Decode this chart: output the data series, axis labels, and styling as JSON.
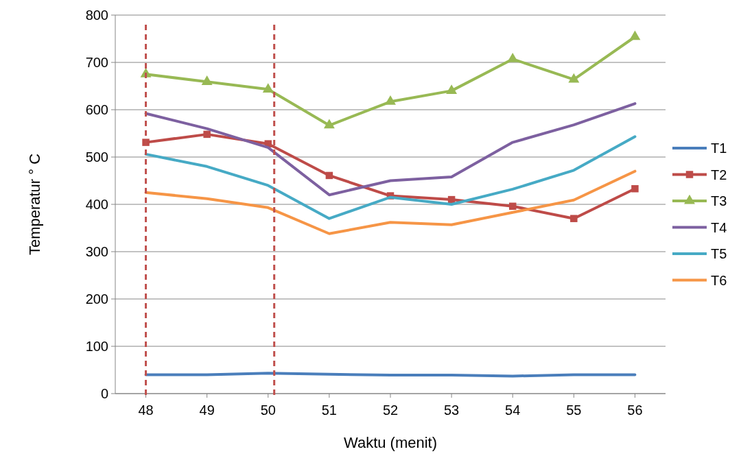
{
  "chart_data": {
    "type": "line",
    "xlabel": "Waktu (menit)",
    "ylabel": "Temperatur ° C",
    "x": [
      48,
      49,
      50,
      51,
      52,
      53,
      54,
      55,
      56
    ],
    "xlim": [
      47.5,
      56.5
    ],
    "xticks": [
      48,
      49,
      50,
      51,
      52,
      53,
      54,
      55,
      56
    ],
    "ylim": [
      0,
      800
    ],
    "yticks": [
      0,
      100,
      200,
      300,
      400,
      500,
      600,
      700,
      800
    ],
    "grid": "y",
    "legend": "right",
    "series": [
      {
        "name": "T1",
        "color": "#4a7ebb",
        "marker": "none",
        "values": [
          40,
          40,
          43,
          41,
          39,
          39,
          37,
          40,
          40
        ]
      },
      {
        "name": "T2",
        "color": "#be4b48",
        "marker": "square",
        "values": [
          531,
          548,
          528,
          461,
          418,
          410,
          396,
          370,
          433
        ]
      },
      {
        "name": "T3",
        "color": "#98b954",
        "marker": "triangle",
        "values": [
          675,
          659,
          643,
          567,
          617,
          640,
          707,
          664,
          754
        ]
      },
      {
        "name": "T4",
        "color": "#7d60a0",
        "marker": "none",
        "values": [
          592,
          560,
          520,
          420,
          450,
          458,
          531,
          568,
          613
        ]
      },
      {
        "name": "T5",
        "color": "#46aac5",
        "marker": "none",
        "values": [
          506,
          480,
          440,
          370,
          415,
          400,
          432,
          472,
          543
        ]
      },
      {
        "name": "T6",
        "color": "#f69546",
        "marker": "none",
        "values": [
          425,
          412,
          393,
          338,
          362,
          357,
          383,
          409,
          470
        ]
      }
    ],
    "ref_lines": [
      {
        "axis": "x",
        "value": 48,
        "color": "#c0504d",
        "line_style": "dashed"
      },
      {
        "axis": "x",
        "value": 50.1,
        "color": "#c0504d",
        "line_style": "dashed"
      }
    ]
  }
}
